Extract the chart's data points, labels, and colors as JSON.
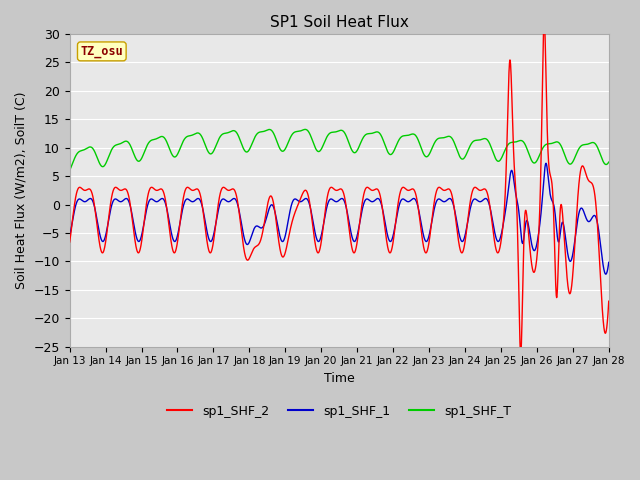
{
  "title": "SP1 Soil Heat Flux",
  "xlabel": "Time",
  "ylabel": "Soil Heat Flux (W/m2), SoilT (C)",
  "ylim": [
    -25,
    30
  ],
  "background_color": "#e8e8e8",
  "grid_color": "#ffffff",
  "tz_label": "TZ_osu",
  "tz_label_color": "#8b0000",
  "tz_box_color": "#ffffc0",
  "tz_box_edge": "#c8a000",
  "legend_entries": [
    "sp1_SHF_2",
    "sp1_SHF_1",
    "sp1_SHF_T"
  ],
  "legend_colors": [
    "#ff0000",
    "#0000cc",
    "#00cc00"
  ],
  "x_tick_labels": [
    "Jan 13",
    "Jan 14",
    "Jan 15",
    "Jan 16",
    "Jan 17",
    "Jan 18",
    "Jan 19",
    "Jan 20",
    "Jan 21",
    "Jan 22",
    "Jan 23",
    "Jan 24",
    "Jan 25",
    "Jan 26",
    "Jan 27",
    "Jan 28"
  ],
  "color_shf2": "#ff0000",
  "color_shf1": "#0000cc",
  "color_shft": "#00cc00"
}
